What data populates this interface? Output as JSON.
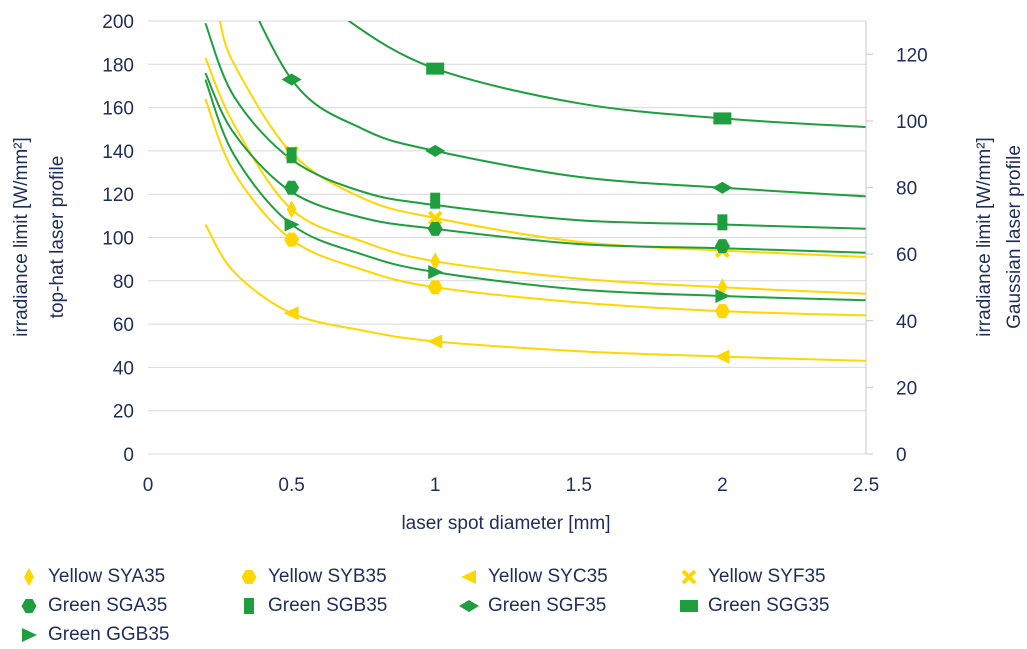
{
  "chart_data": {
    "type": "scatter",
    "xlabel": "laser spot diameter [mm]",
    "ylabel_left": [
      "irradiance limit [W/mm²]",
      "top-hat laser profile"
    ],
    "ylabel_right": [
      "irradiance limit [W/mm²]",
      "Gaussian laser profile"
    ],
    "xlim": [
      0,
      2.5
    ],
    "ylim_left": [
      0,
      200
    ],
    "ylim_right": [
      0,
      130
    ],
    "x_ticks": [
      0,
      0.5,
      1,
      1.5,
      2,
      2.5
    ],
    "x_tick_labels": [
      "0",
      "0.5",
      "1",
      "1.5",
      "2",
      "2.5"
    ],
    "y_left_ticks": [
      0,
      20,
      40,
      60,
      80,
      100,
      120,
      140,
      160,
      180,
      200
    ],
    "y_right_ticks": [
      0,
      20,
      40,
      60,
      80,
      100,
      120
    ],
    "grid": "horizontal",
    "legend_position": "bottom",
    "series": [
      {
        "name": "Yellow SYA35",
        "color": "#ffd600",
        "marker": "diamond-thin",
        "points": [
          [
            0.5,
            113
          ],
          [
            1,
            89
          ],
          [
            2,
            77
          ]
        ],
        "curve": [
          [
            0.2,
            183
          ],
          [
            0.3,
            152
          ],
          [
            0.5,
            113
          ],
          [
            0.75,
            98
          ],
          [
            1,
            89
          ],
          [
            1.5,
            81
          ],
          [
            2,
            77
          ],
          [
            2.5,
            74
          ]
        ]
      },
      {
        "name": "Yellow SYB35",
        "color": "#ffd600",
        "marker": "hexagon",
        "points": [
          [
            0.5,
            99
          ],
          [
            1,
            77
          ],
          [
            2,
            66
          ]
        ],
        "curve": [
          [
            0.2,
            164
          ],
          [
            0.3,
            130
          ],
          [
            0.5,
            99
          ],
          [
            0.75,
            85
          ],
          [
            1,
            77
          ],
          [
            1.5,
            70
          ],
          [
            2,
            66
          ],
          [
            2.5,
            64
          ]
        ]
      },
      {
        "name": "Yellow SYC35",
        "color": "#ffd600",
        "marker": "triangle-left",
        "points": [
          [
            0.5,
            65
          ],
          [
            1,
            52
          ],
          [
            2,
            45
          ]
        ],
        "curve": [
          [
            0.2,
            106
          ],
          [
            0.3,
            84
          ],
          [
            0.5,
            65
          ],
          [
            0.75,
            57
          ],
          [
            1,
            52
          ],
          [
            1.5,
            47.5
          ],
          [
            2,
            45
          ],
          [
            2.5,
            43
          ]
        ]
      },
      {
        "name": "Yellow SYF35",
        "color": "#ffd600",
        "marker": "x",
        "points": [
          [
            0.5,
            139
          ],
          [
            1,
            109
          ],
          [
            2,
            94
          ]
        ],
        "curve": [
          [
            0.25,
            200
          ],
          [
            0.3,
            180
          ],
          [
            0.5,
            139
          ],
          [
            0.75,
            118
          ],
          [
            1,
            109
          ],
          [
            1.5,
            98
          ],
          [
            2,
            94
          ],
          [
            2.5,
            91
          ]
        ]
      },
      {
        "name": "Green SGA35",
        "color": "#1e9e3e",
        "marker": "hexagon",
        "points": [
          [
            0.5,
            123
          ],
          [
            1,
            104
          ],
          [
            2,
            96
          ]
        ],
        "curve": [
          [
            0.2,
            176
          ],
          [
            0.3,
            148
          ],
          [
            0.5,
            121
          ],
          [
            0.75,
            109
          ],
          [
            1,
            104
          ],
          [
            1.5,
            97
          ],
          [
            2,
            95
          ],
          [
            2.5,
            93
          ]
        ]
      },
      {
        "name": "Green SGB35",
        "color": "#1e9e3e",
        "marker": "rect",
        "points": [
          [
            0.5,
            138
          ],
          [
            1,
            117
          ],
          [
            2,
            107
          ]
        ],
        "curve": [
          [
            0.2,
            199
          ],
          [
            0.3,
            165
          ],
          [
            0.5,
            136
          ],
          [
            0.75,
            121
          ],
          [
            1,
            115
          ],
          [
            1.5,
            108
          ],
          [
            2,
            106
          ],
          [
            2.5,
            104
          ]
        ]
      },
      {
        "name": "Green SGF35",
        "color": "#1e9e3e",
        "marker": "diamond-wide",
        "points": [
          [
            0.5,
            173
          ],
          [
            1,
            140
          ],
          [
            2,
            123
          ]
        ],
        "curve": [
          [
            0.25,
            240
          ],
          [
            0.5,
            173
          ],
          [
            0.75,
            150
          ],
          [
            1,
            140
          ],
          [
            1.5,
            128
          ],
          [
            2,
            123
          ],
          [
            2.5,
            119
          ]
        ]
      },
      {
        "name": "Green SGG35",
        "color": "#1e9e3e",
        "marker": "square",
        "points": [
          [
            1,
            178
          ],
          [
            2,
            155
          ]
        ],
        "curve": [
          [
            0.55,
            220
          ],
          [
            0.7,
            200
          ],
          [
            1,
            178
          ],
          [
            1.5,
            162
          ],
          [
            2,
            155
          ],
          [
            2.5,
            151
          ]
        ]
      },
      {
        "name": "Green GGB35",
        "color": "#1e9e3e",
        "marker": "triangle-right",
        "points": [
          [
            0.5,
            106
          ],
          [
            1,
            84
          ],
          [
            2,
            73
          ]
        ],
        "curve": [
          [
            0.2,
            173
          ],
          [
            0.3,
            138
          ],
          [
            0.5,
            106
          ],
          [
            0.75,
            92
          ],
          [
            1,
            84
          ],
          [
            1.5,
            76
          ],
          [
            2,
            73
          ],
          [
            2.5,
            71
          ]
        ]
      }
    ]
  }
}
